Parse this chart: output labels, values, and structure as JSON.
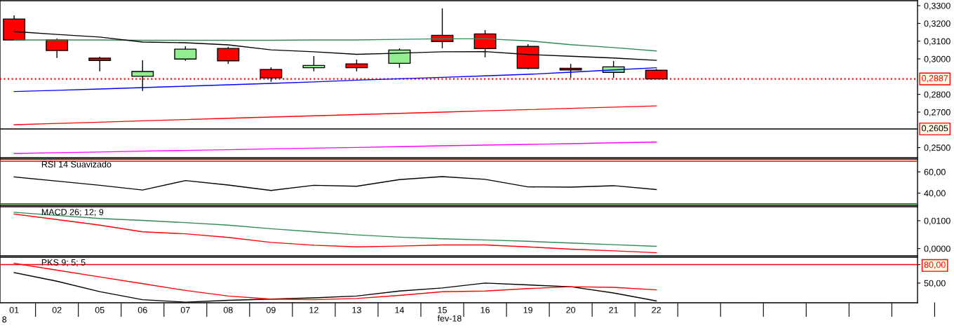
{
  "chart_data": [
    {
      "type": "candlestick",
      "tick_labels": "y",
      "legend": false,
      "grid": false,
      "categories": [
        "01",
        "02",
        "05",
        "06",
        "07",
        "08",
        "09",
        "12",
        "13",
        "14",
        "15",
        "16",
        "19",
        "20",
        "21",
        "22",
        null,
        null,
        null,
        null,
        null,
        null
      ],
      "ohlc": [
        [
          0.3225,
          0.3245,
          0.3107,
          0.3107
        ],
        [
          0.3107,
          0.3115,
          0.3005,
          0.3047
        ],
        [
          0.3004,
          0.3012,
          0.293,
          0.2991
        ],
        [
          0.2902,
          0.2992,
          0.2819,
          0.2929
        ],
        [
          0.2999,
          0.3071,
          0.2989,
          0.3055
        ],
        [
          0.3059,
          0.3068,
          0.2972,
          0.2989
        ],
        [
          0.294,
          0.2953,
          0.2871,
          0.2893
        ],
        [
          0.295,
          0.3016,
          0.293,
          0.2963
        ],
        [
          0.2972,
          0.2996,
          0.293,
          0.295
        ],
        [
          0.2975,
          0.3059,
          0.295,
          0.305
        ],
        [
          0.3133,
          0.3285,
          0.306,
          0.3098
        ],
        [
          0.3141,
          0.3162,
          0.3009,
          0.3058
        ],
        [
          0.307,
          0.3083,
          0.2942,
          0.2947
        ],
        [
          0.2947,
          0.2972,
          0.2893,
          0.2938
        ],
        [
          0.2924,
          0.2988,
          0.2893,
          0.2955
        ],
        [
          0.2936,
          0.2943,
          0.2887,
          0.2887
        ],
        null,
        null,
        null,
        null,
        null,
        null
      ],
      "colors": [
        "#ff0000",
        "#ff0000",
        "#ff0000",
        "#90ee90",
        "#90ee90",
        "#ff0000",
        "#ff0000",
        "#90ee90",
        "#ff0000",
        "#90ee90",
        "#ff0000",
        "#ff0000",
        "#ff0000",
        "#ff0000",
        "#90ee90",
        "#ff0000",
        null,
        null,
        null,
        null,
        null,
        null
      ],
      "series": [
        {
          "type": "line",
          "color": "#2e8b57",
          "values": [
            0.3107,
            0.3107,
            0.3107,
            0.3105,
            0.3105,
            0.3105,
            0.3105,
            0.3107,
            0.3107,
            0.311,
            0.3113,
            0.3113,
            0.3102,
            0.308,
            0.3064,
            0.3045,
            null,
            null,
            null,
            null,
            null,
            null
          ]
        },
        {
          "type": "line",
          "color": "#000000",
          "values": [
            0.3154,
            0.3138,
            0.3123,
            0.3095,
            0.3091,
            0.3079,
            0.3051,
            0.304,
            0.3026,
            0.3032,
            0.304,
            0.3041,
            0.3025,
            0.3015,
            0.3005,
            0.2992,
            null,
            null,
            null,
            null,
            null,
            null
          ]
        },
        {
          "type": "line",
          "color": "#0000ff",
          "values": [
            0.2816,
            0.2823,
            0.283,
            0.2838,
            0.2846,
            0.2854,
            0.2862,
            0.287,
            0.288,
            0.2888,
            0.2896,
            0.2904,
            0.2913,
            0.2925,
            0.2938,
            0.295,
            null,
            null,
            null,
            null,
            null,
            null
          ]
        },
        {
          "type": "line",
          "color": "#ff0000",
          "values": [
            0.2629,
            0.2636,
            0.2643,
            0.2651,
            0.2658,
            0.2665,
            0.2672,
            0.2679,
            0.2686,
            0.2693,
            0.27,
            0.2707,
            0.2714,
            0.2721,
            0.2728,
            0.2735,
            null,
            null,
            null,
            null,
            null,
            null
          ]
        },
        {
          "type": "line",
          "color": "#ff00ff",
          "values": [
            0.2467,
            0.2471,
            0.2475,
            0.248,
            0.2484,
            0.2488,
            0.2493,
            0.2497,
            0.2501,
            0.2505,
            0.251,
            0.2514,
            0.2518,
            0.2522,
            0.2527,
            0.2531,
            null,
            null,
            null,
            null,
            null,
            null
          ]
        }
      ],
      "ylim": [
        0.2443,
        0.3328
      ],
      "yticks": [
        {
          "value": 0.25,
          "label": "0,2500"
        },
        {
          "value": 0.27,
          "label": "0,2700"
        },
        {
          "value": 0.28,
          "label": "0,2800"
        },
        {
          "value": 0.3,
          "label": "0,3000"
        },
        {
          "value": 0.31,
          "label": "0,3100"
        },
        {
          "value": 0.32,
          "label": "0,3200"
        },
        {
          "value": 0.33,
          "label": "0,3300"
        }
      ],
      "ref_lines": [
        {
          "axis": "y",
          "value": 0.2887,
          "label": "0,2887",
          "color": "#ff0000",
          "line_style": "dotted"
        },
        {
          "axis": "y",
          "value": 0.2605,
          "label": "0,2605",
          "color": "#000000",
          "line_style": "solid"
        }
      ]
    },
    {
      "type": "line",
      "tick_labels": "y",
      "legend": false,
      "grid": false,
      "title": "RSI 14 Suavizado",
      "categories": [
        "01",
        "02",
        "05",
        "06",
        "07",
        "08",
        "09",
        "12",
        "13",
        "14",
        "15",
        "16",
        "19",
        "20",
        "21",
        "22",
        null,
        null,
        null,
        null,
        null,
        null
      ],
      "series": [
        {
          "color": "#000000",
          "values": [
            55.2,
            51.3,
            47.4,
            42.9,
            51.8,
            47.6,
            42.5,
            47.4,
            46.5,
            52.7,
            55.5,
            53.0,
            45.9,
            45.6,
            47.0,
            43.4,
            null,
            null,
            null,
            null,
            null,
            null
          ]
        }
      ],
      "ylim": [
        28.5,
        72
      ],
      "yticks": [
        {
          "value": 40,
          "label": "40,00"
        },
        {
          "value": 60,
          "label": "60,00"
        }
      ],
      "ref_lines": [
        {
          "axis": "y",
          "value": 70,
          "color": "#ff0000"
        },
        {
          "axis": "y",
          "value": 30,
          "color": "#008000"
        }
      ]
    },
    {
      "type": "line",
      "tick_labels": "y",
      "legend": false,
      "grid": false,
      "title": "MACD 26; 12; 9",
      "categories": [
        "01",
        "02",
        "05",
        "06",
        "07",
        "08",
        "09",
        "12",
        "13",
        "14",
        "15",
        "16",
        "19",
        "20",
        "21",
        "22",
        null,
        null,
        null,
        null,
        null,
        null
      ],
      "series": [
        {
          "color": "#2e8b57",
          "values": [
            0.013,
            0.0119,
            0.0108,
            0.0101,
            0.0093,
            0.0084,
            0.0071,
            0.006,
            0.0049,
            0.0041,
            0.0035,
            0.0031,
            0.0026,
            0.002,
            0.0014,
            0.0008,
            null,
            null,
            null,
            null,
            null,
            null
          ]
        },
        {
          "color": "#ff0000",
          "values": [
            0.0124,
            0.0104,
            0.0084,
            0.006,
            0.0053,
            0.004,
            0.0022,
            0.0012,
            0.0006,
            0.0009,
            0.0013,
            0.0013,
            0.0006,
            -0.0002,
            -0.0008,
            -0.0015,
            null,
            null,
            null,
            null,
            null,
            null
          ]
        }
      ],
      "ylim": [
        -0.0026,
        0.015
      ],
      "yticks": [
        {
          "value": 0,
          "label": "0,0000"
        },
        {
          "value": 0.01,
          "label": "0,0100"
        }
      ]
    },
    {
      "type": "line",
      "legend": false,
      "grid": false,
      "title": "PKS 9; 5; 5",
      "xlabel": "fev-18",
      "annotations": [
        "8"
      ],
      "categories": [
        "01",
        "02",
        "05",
        "06",
        "07",
        "08",
        "09",
        "12",
        "13",
        "14",
        "15",
        "16",
        "19",
        "20",
        "21",
        "22",
        null,
        null,
        null,
        null,
        null,
        null
      ],
      "series": [
        {
          "color": "#000000",
          "values": [
            67,
            53,
            36,
            23,
            19,
            22,
            24,
            26,
            29,
            37,
            42,
            50,
            47,
            44,
            34,
            21,
            null,
            null,
            null,
            null,
            null,
            null
          ]
        },
        {
          "color": "#ff0000",
          "values": [
            82,
            71,
            60,
            49,
            38,
            29,
            24,
            23,
            25,
            30,
            36,
            37,
            41,
            44,
            43,
            39,
            null,
            null,
            null,
            null,
            null,
            null
          ]
        }
      ],
      "ylim": [
        18,
        92
      ],
      "yticks": [
        {
          "value": 50,
          "label": "50,00"
        },
        {
          "value": 80,
          "label": "80,00"
        }
      ],
      "ref_lines": [
        {
          "axis": "y",
          "value": 80,
          "color": "#ff0000"
        }
      ]
    }
  ]
}
